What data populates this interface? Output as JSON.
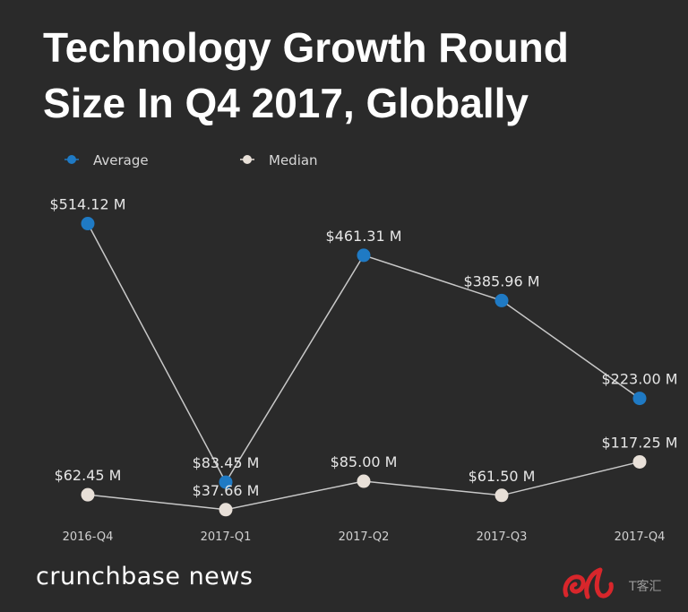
{
  "chart_data": {
    "type": "line",
    "title": "Technology Growth Round Size In Q4 2017, Globally",
    "categories": [
      "2016-Q4",
      "2017-Q1",
      "2017-Q2",
      "2017-Q3",
      "2017-Q4"
    ],
    "series": [
      {
        "name": "Average",
        "values": [
          514.12,
          83.45,
          461.31,
          385.96,
          223.0
        ],
        "labels": [
          "$514.12 M",
          "$83.45 M",
          "$461.31 M",
          "$385.96 M",
          "$223.00 M"
        ],
        "color": "#1f7ac4"
      },
      {
        "name": "Median",
        "values": [
          62.45,
          37.66,
          85.0,
          61.5,
          117.25
        ],
        "labels": [
          "$62.45 M",
          "$37.66 M",
          "$85.00 M",
          "$61.50 M",
          "$117.25 M"
        ],
        "color": "#e8e0d8"
      }
    ],
    "ylim": [
      0,
      600
    ],
    "grid": false,
    "legend": "top-left"
  },
  "footer": {
    "brand": "crunchbase news",
    "watermark": "T客汇"
  }
}
